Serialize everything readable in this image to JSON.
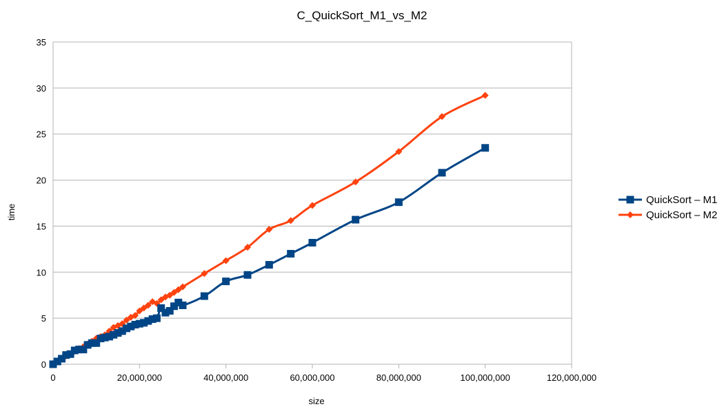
{
  "chart_data": {
    "type": "line",
    "title": "C_QuickSort_M1_vs_M2",
    "xlabel": "size",
    "ylabel": "time",
    "xlim": [
      0,
      120000000
    ],
    "ylim": [
      0,
      35
    ],
    "x_ticks": [
      "0",
      "20,000,000",
      "40,000,000",
      "60,000,000",
      "80,000,000",
      "100,000,000",
      "120,000,000"
    ],
    "y_ticks": [
      "0",
      "5",
      "10",
      "15",
      "20",
      "25",
      "30",
      "35"
    ],
    "grid": true,
    "legend_position": "right",
    "x": [
      0,
      1000000,
      2000000,
      3000000,
      4000000,
      5000000,
      6000000,
      7000000,
      8000000,
      9000000,
      10000000,
      11000000,
      12000000,
      13000000,
      14000000,
      15000000,
      16000000,
      17000000,
      18000000,
      19000000,
      20000000,
      21000000,
      22000000,
      23000000,
      24000000,
      25000000,
      26000000,
      27000000,
      28000000,
      29000000,
      30000000,
      35000000,
      40000000,
      45000000,
      50000000,
      55000000,
      60000000,
      70000000,
      80000000,
      90000000,
      100000000
    ],
    "series": [
      {
        "name": "QuickSort – M1",
        "color": "#004586",
        "marker": "square",
        "values": [
          0.0,
          0.3,
          0.6,
          1.0,
          1.1,
          1.5,
          1.6,
          1.6,
          2.1,
          2.3,
          2.3,
          2.8,
          2.9,
          3.0,
          3.2,
          3.4,
          3.6,
          3.9,
          4.1,
          4.3,
          4.4,
          4.5,
          4.7,
          4.9,
          5.0,
          6.1,
          5.6,
          5.8,
          6.3,
          6.7,
          6.4,
          7.4,
          9.0,
          9.7,
          10.8,
          12.0,
          13.2,
          15.7,
          17.6,
          20.8,
          23.5
        ]
      },
      {
        "name": "QuickSort – M2",
        "color": "#ff420e",
        "marker": "diamond",
        "values": [
          0.0,
          0.3,
          0.6,
          0.9,
          1.1,
          1.4,
          1.7,
          1.9,
          2.2,
          2.5,
          2.8,
          3.0,
          3.2,
          3.6,
          4.0,
          4.2,
          4.4,
          4.8,
          5.1,
          5.3,
          5.8,
          6.1,
          6.4,
          6.8,
          6.6,
          7.0,
          7.3,
          7.5,
          7.8,
          8.1,
          8.4,
          9.85,
          11.25,
          12.7,
          14.65,
          15.6,
          17.25,
          19.8,
          23.1,
          26.9,
          29.2
        ]
      }
    ]
  }
}
